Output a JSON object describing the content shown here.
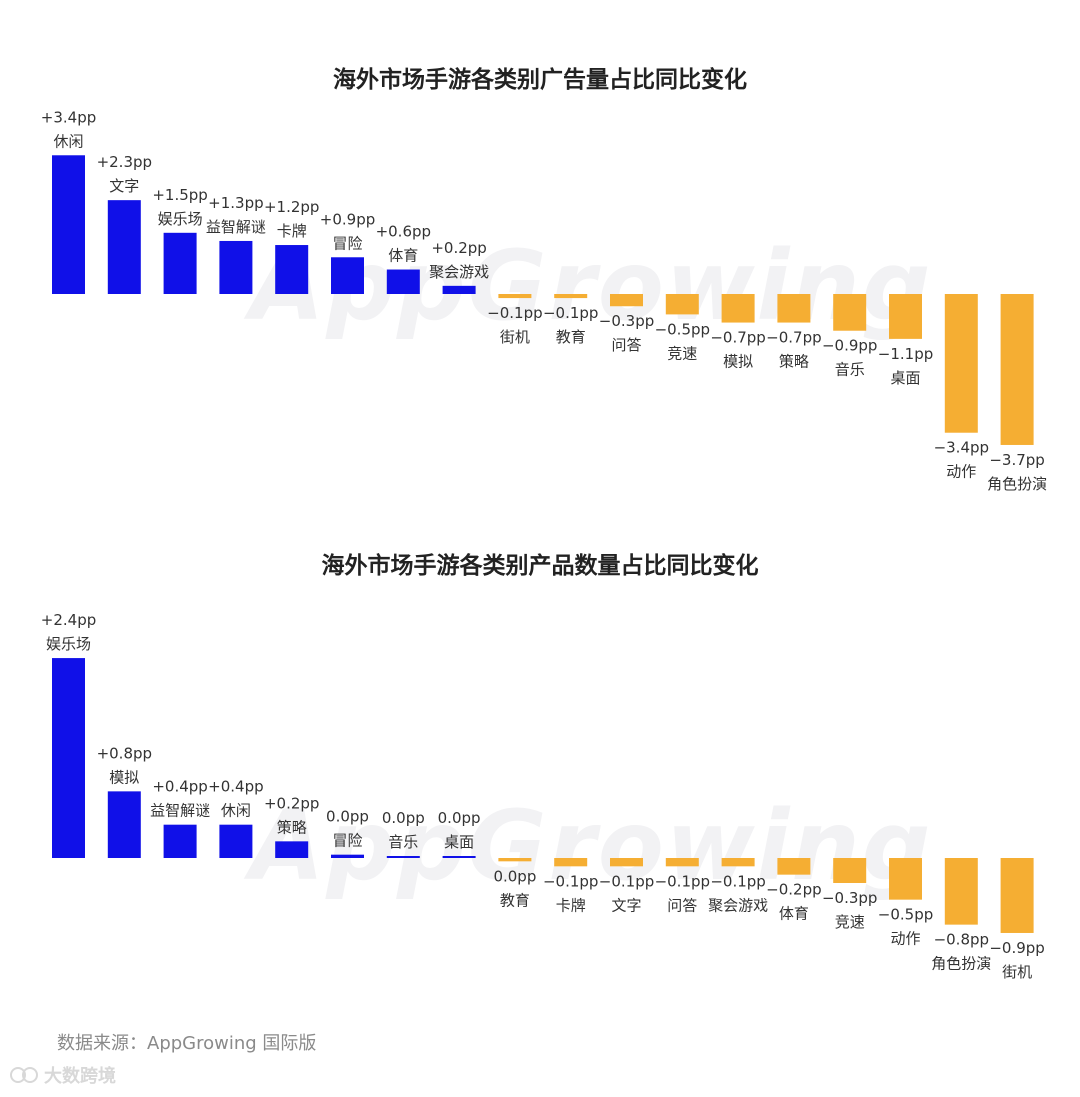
{
  "chart_data": [
    {
      "type": "bar",
      "title": "海外市场手游各类别广告量占比同比变化",
      "unit": "pp",
      "categories": [
        "休闲",
        "文字",
        "娱乐场",
        "益智解谜",
        "卡牌",
        "冒险",
        "体育",
        "聚会游戏",
        "街机",
        "教育",
        "问答",
        "竞速",
        "模拟",
        "策略",
        "音乐",
        "桌面",
        "动作",
        "角色扮演"
      ],
      "values": [
        3.4,
        2.3,
        1.5,
        1.3,
        1.2,
        0.9,
        0.6,
        0.2,
        -0.1,
        -0.1,
        -0.3,
        -0.5,
        -0.7,
        -0.7,
        -0.9,
        -1.1,
        -3.4,
        -3.7
      ],
      "value_labels": [
        "+3.4pp",
        "+2.3pp",
        "+1.5pp",
        "+1.3pp",
        "+1.2pp",
        "+0.9pp",
        "+0.6pp",
        "+0.2pp",
        "−0.1pp",
        "−0.1pp",
        "−0.3pp",
        "−0.5pp",
        "−0.7pp",
        "−0.7pp",
        "−0.9pp",
        "−1.1pp",
        "−3.4pp",
        "−3.7pp"
      ],
      "colors": {
        "positive": "#1010e8",
        "negative": "#f5ae33"
      },
      "grid": false
    },
    {
      "type": "bar",
      "title": "海外市场手游各类别产品数量占比同比变化",
      "unit": "pp",
      "categories": [
        "娱乐场",
        "模拟",
        "益智解谜",
        "休闲",
        "策略",
        "冒险",
        "音乐",
        "桌面",
        "教育",
        "卡牌",
        "文字",
        "问答",
        "聚会游戏",
        "体育",
        "竞速",
        "动作",
        "角色扮演",
        "街机"
      ],
      "values": [
        2.4,
        0.8,
        0.4,
        0.4,
        0.2,
        0.04,
        0.02,
        0.01,
        -0.04,
        -0.1,
        -0.1,
        -0.1,
        -0.1,
        -0.2,
        -0.3,
        -0.5,
        -0.8,
        -0.9
      ],
      "value_labels": [
        "+2.4pp",
        "+0.8pp",
        "+0.4pp",
        "+0.4pp",
        "+0.2pp",
        "0.0pp",
        "0.0pp",
        "0.0pp",
        "0.0pp",
        "−0.1pp",
        "−0.1pp",
        "−0.1pp",
        "−0.1pp",
        "−0.2pp",
        "−0.3pp",
        "−0.5pp",
        "−0.8pp",
        "−0.9pp"
      ],
      "colors": {
        "positive": "#1010e8",
        "negative": "#f5ae33"
      },
      "grid": false
    }
  ],
  "watermark": "AppGrowing",
  "footer": {
    "source": "数据来源：AppGrowing 国际版",
    "brand": "大数跨境",
    "brand_icon": "infinity-logo-icon"
  }
}
